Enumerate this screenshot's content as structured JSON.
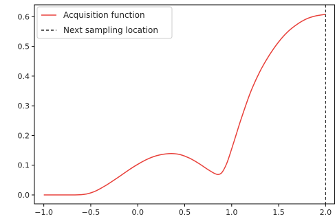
{
  "chart_data": {
    "type": "line",
    "title": "",
    "xlabel": "",
    "ylabel": "",
    "xlim": [
      -1.1,
      2.1
    ],
    "ylim": [
      -0.03,
      0.64
    ],
    "grid": false,
    "legend_position": "top-left",
    "x_ticks": [
      {
        "value": -1.0,
        "label": "−1.0"
      },
      {
        "value": -0.5,
        "label": "−0.5"
      },
      {
        "value": 0.0,
        "label": "0.0"
      },
      {
        "value": 0.5,
        "label": "0.5"
      },
      {
        "value": 1.0,
        "label": "1.0"
      },
      {
        "value": 1.5,
        "label": "1.5"
      },
      {
        "value": 2.0,
        "label": "2.0"
      }
    ],
    "y_ticks": [
      {
        "value": 0.0,
        "label": "0.0"
      },
      {
        "value": 0.1,
        "label": "0.1"
      },
      {
        "value": 0.2,
        "label": "0.2"
      },
      {
        "value": 0.3,
        "label": "0.3"
      },
      {
        "value": 0.4,
        "label": "0.4"
      },
      {
        "value": 0.5,
        "label": "0.5"
      },
      {
        "value": 0.6,
        "label": "0.6"
      }
    ],
    "series": [
      {
        "name": "Acquisition function",
        "color": "#e8413b",
        "style": "solid",
        "x": [
          -1.0,
          -0.9,
          -0.8,
          -0.7,
          -0.6,
          -0.55,
          -0.5,
          -0.45,
          -0.4,
          -0.35,
          -0.3,
          -0.2,
          -0.1,
          0.0,
          0.1,
          0.2,
          0.3,
          0.38,
          0.45,
          0.55,
          0.65,
          0.75,
          0.82,
          0.86,
          0.9,
          0.95,
          1.0,
          1.05,
          1.1,
          1.2,
          1.3,
          1.4,
          1.5,
          1.6,
          1.7,
          1.8,
          1.9,
          2.0
        ],
        "y": [
          0.0,
          0.0,
          0.0,
          0.0,
          0.001,
          0.003,
          0.007,
          0.013,
          0.021,
          0.03,
          0.04,
          0.061,
          0.083,
          0.103,
          0.12,
          0.132,
          0.138,
          0.139,
          0.136,
          0.124,
          0.106,
          0.085,
          0.072,
          0.069,
          0.077,
          0.108,
          0.155,
          0.205,
          0.255,
          0.345,
          0.415,
          0.47,
          0.515,
          0.55,
          0.575,
          0.593,
          0.603,
          0.608
        ]
      }
    ],
    "vlines": [
      {
        "name": "Next sampling location",
        "x": 2.0,
        "color": "#000000",
        "style": "dashed"
      }
    ]
  }
}
